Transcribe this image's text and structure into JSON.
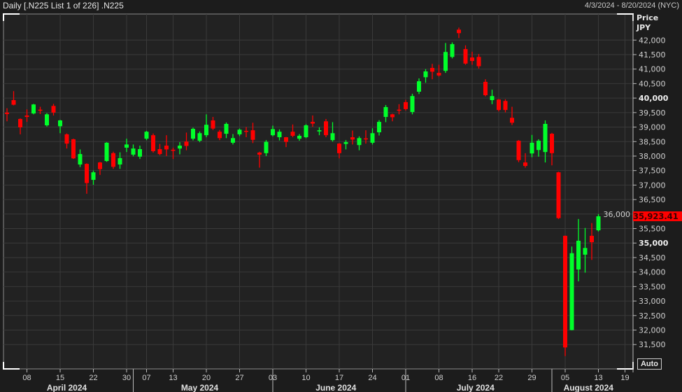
{
  "header": {
    "title": "Daily [.N225 List 1 of 226] .N225",
    "date_range": "4/3/2024 - 8/20/2024 (NYC)"
  },
  "axis": {
    "price_label": "Price",
    "currency_label": "JPY",
    "auto_button": "Auto",
    "last_price": "35,923.41"
  },
  "colors": {
    "up": "#00ff2a",
    "down": "#ff0000",
    "background": "#1c1c1c",
    "plot": "#222222",
    "grid": "#3a3a3a",
    "last_price_bg": "#ff0000"
  },
  "chart_data": {
    "type": "candlestick",
    "title": "",
    "xlabel": "",
    "ylabel": "Price JPY",
    "ylim": [
      30660,
      42900
    ],
    "grid": true,
    "yticks": [
      31500,
      32000,
      32500,
      33000,
      33500,
      34000,
      34500,
      35000,
      35500,
      36000,
      36500,
      37000,
      37500,
      38000,
      38500,
      39000,
      39500,
      40000,
      40500,
      41000,
      41500,
      42000
    ],
    "ytick_labels": [
      "31,500",
      "32,000",
      "32,500",
      "33,000",
      "33,500",
      "34,000",
      "34,500",
      "35,000",
      "35,500",
      "36,000",
      "36,500",
      "37,000",
      "37,500",
      "38,000",
      "38,500",
      "39,000",
      "39,500",
      "40,000",
      "40,500",
      "41,000",
      "41,500",
      "42,000"
    ],
    "bold_yticks": [
      35000,
      40000
    ],
    "xticks": [
      {
        "date": "2024-04-08",
        "label": "08"
      },
      {
        "date": "2024-04-15",
        "label": "15"
      },
      {
        "date": "2024-04-22",
        "label": "22"
      },
      {
        "date": "2024-04-30",
        "label": "30"
      },
      {
        "date": "2024-05-07",
        "label": "07"
      },
      {
        "date": "2024-05-13",
        "label": "13"
      },
      {
        "date": "2024-05-20",
        "label": "20"
      },
      {
        "date": "2024-05-27",
        "label": "27"
      },
      {
        "date": "2024-06-03",
        "label": "03"
      },
      {
        "date": "2024-06-10",
        "label": "10"
      },
      {
        "date": "2024-06-17",
        "label": "17"
      },
      {
        "date": "2024-06-24",
        "label": "24"
      },
      {
        "date": "2024-07-01",
        "label": "01"
      },
      {
        "date": "2024-07-08",
        "label": "08"
      },
      {
        "date": "2024-07-16",
        "label": "16"
      },
      {
        "date": "2024-07-22",
        "label": "22"
      },
      {
        "date": "2024-07-29",
        "label": "29"
      },
      {
        "date": "2024-08-05",
        "label": "05"
      },
      {
        "date": "2024-08-13",
        "label": "13"
      },
      {
        "date": "2024-08-19",
        "label": "19"
      }
    ],
    "months": [
      {
        "label": "April 2024",
        "start": "2024-04-03",
        "end": "2024-04-30"
      },
      {
        "label": "May 2024",
        "start": "2024-05-01",
        "end": "2024-05-31"
      },
      {
        "label": "June 2024",
        "start": "2024-06-03",
        "end": "2024-06-28"
      },
      {
        "label": "July 2024",
        "start": "2024-07-01",
        "end": "2024-07-31"
      },
      {
        "label": "August 2024",
        "start": "2024-08-01",
        "end": "2024-08-19"
      }
    ],
    "columns": [
      "date",
      "open",
      "high",
      "low",
      "close"
    ],
    "candles": [
      [
        "2024-04-03",
        39500,
        39650,
        39200,
        39450
      ],
      [
        "2024-04-04",
        39930,
        40240,
        39750,
        39770
      ],
      [
        "2024-04-05",
        39280,
        39300,
        38750,
        38990
      ],
      [
        "2024-04-08",
        39400,
        39610,
        39180,
        39350
      ],
      [
        "2024-04-09",
        39470,
        39800,
        39440,
        39780
      ],
      [
        "2024-04-10",
        39600,
        39700,
        39450,
        39580
      ],
      [
        "2024-04-11",
        39060,
        39480,
        39020,
        39440
      ],
      [
        "2024-04-12",
        39730,
        39800,
        39400,
        39500
      ],
      [
        "2024-04-15",
        39030,
        39250,
        38790,
        39230
      ],
      [
        "2024-04-16",
        38750,
        38780,
        38260,
        38430
      ],
      [
        "2024-04-17",
        38580,
        38600,
        37900,
        37920
      ],
      [
        "2024-04-18",
        37710,
        38230,
        37620,
        38070
      ],
      [
        "2024-04-19",
        37730,
        37750,
        36700,
        37070
      ],
      [
        "2024-04-22",
        37180,
        37500,
        37010,
        37440
      ],
      [
        "2024-04-23",
        37780,
        37800,
        37350,
        37550
      ],
      [
        "2024-04-24",
        37830,
        38480,
        37800,
        38460
      ],
      [
        "2024-04-25",
        38100,
        38150,
        37560,
        37630
      ],
      [
        "2024-04-26",
        37710,
        38130,
        37560,
        37930
      ],
      [
        "2024-04-30",
        38290,
        38600,
        38140,
        38400
      ],
      [
        "2024-05-01",
        38050,
        38400,
        37990,
        38260
      ],
      [
        "2024-05-02",
        37980,
        38360,
        37900,
        38240
      ],
      [
        "2024-05-07",
        38600,
        38870,
        38550,
        38840
      ],
      [
        "2024-05-08",
        38720,
        38780,
        38120,
        38170
      ],
      [
        "2024-05-09",
        38240,
        38420,
        38030,
        38070
      ],
      [
        "2024-05-10",
        38360,
        38720,
        38000,
        38230
      ],
      [
        "2024-05-13",
        38220,
        38290,
        37900,
        38180
      ],
      [
        "2024-05-14",
        38260,
        38480,
        38060,
        38360
      ],
      [
        "2024-05-15",
        38500,
        38810,
        38200,
        38350
      ],
      [
        "2024-05-16",
        38600,
        38980,
        38540,
        38940
      ],
      [
        "2024-05-17",
        38530,
        38850,
        38480,
        38790
      ],
      [
        "2024-05-20",
        38720,
        39440,
        38650,
        39080
      ],
      [
        "2024-05-21",
        39230,
        39350,
        38900,
        38950
      ],
      [
        "2024-05-22",
        38840,
        38900,
        38550,
        38620
      ],
      [
        "2024-05-23",
        38770,
        39160,
        38620,
        39110
      ],
      [
        "2024-05-24",
        38460,
        38760,
        38400,
        38620
      ],
      [
        "2024-05-27",
        38750,
        38950,
        38690,
        38910
      ],
      [
        "2024-05-28",
        38870,
        39000,
        38650,
        38850
      ],
      [
        "2024-05-29",
        38890,
        39150,
        38450,
        38560
      ],
      [
        "2024-05-30",
        38120,
        38150,
        37600,
        38050
      ],
      [
        "2024-05-31",
        38100,
        38550,
        38000,
        38490
      ],
      [
        "2024-06-03",
        38720,
        39050,
        38680,
        38930
      ],
      [
        "2024-06-04",
        38650,
        38920,
        38540,
        38840
      ],
      [
        "2024-06-05",
        38650,
        38660,
        38310,
        38490
      ],
      [
        "2024-06-06",
        38840,
        39090,
        38650,
        38700
      ],
      [
        "2024-06-07",
        38600,
        38760,
        38530,
        38700
      ],
      [
        "2024-06-10",
        38650,
        39100,
        38620,
        39060
      ],
      [
        "2024-06-11",
        39180,
        39400,
        39010,
        39120
      ],
      [
        "2024-06-12",
        38850,
        38990,
        38720,
        38890
      ],
      [
        "2024-06-13",
        39200,
        39280,
        38650,
        38720
      ],
      [
        "2024-06-14",
        38550,
        39170,
        38500,
        38790
      ],
      [
        "2024-06-17",
        38430,
        38450,
        37920,
        38100
      ],
      [
        "2024-06-18",
        38420,
        38550,
        38230,
        38480
      ],
      [
        "2024-06-19",
        38650,
        38880,
        38400,
        38570
      ],
      [
        "2024-06-20",
        38380,
        38680,
        38200,
        38620
      ],
      [
        "2024-06-21",
        38610,
        38890,
        38430,
        38590
      ],
      [
        "2024-06-24",
        38460,
        38960,
        38400,
        38790
      ],
      [
        "2024-06-25",
        38820,
        39240,
        38710,
        39180
      ],
      [
        "2024-06-26",
        39350,
        39760,
        39170,
        39690
      ],
      [
        "2024-06-27",
        39440,
        39460,
        39200,
        39340
      ],
      [
        "2024-06-28",
        39600,
        39790,
        39440,
        39580
      ],
      [
        "2024-07-01",
        39860,
        39940,
        39570,
        39620
      ],
      [
        "2024-07-02",
        39520,
        40150,
        39440,
        40070
      ],
      [
        "2024-07-03",
        40220,
        40680,
        40140,
        40580
      ],
      [
        "2024-07-04",
        40720,
        41000,
        40530,
        40920
      ],
      [
        "2024-07-05",
        41040,
        41180,
        40650,
        40910
      ],
      [
        "2024-07-08",
        40870,
        41150,
        40740,
        40780
      ],
      [
        "2024-07-09",
        40940,
        41900,
        40870,
        41590
      ],
      [
        "2024-07-10",
        41420,
        41920,
        41370,
        41860
      ],
      [
        "2024-07-11",
        42360,
        42430,
        42070,
        42240
      ],
      [
        "2024-07-12",
        41690,
        41820,
        41150,
        41190
      ],
      [
        "2024-07-16",
        41400,
        41600,
        41150,
        41280
      ],
      [
        "2024-07-17",
        41420,
        41520,
        41020,
        41100
      ],
      [
        "2024-07-18",
        40560,
        40650,
        40060,
        40100
      ],
      [
        "2024-07-19",
        39930,
        40290,
        39790,
        40070
      ],
      [
        "2024-07-22",
        39950,
        39970,
        39540,
        39590
      ],
      [
        "2024-07-23",
        39900,
        39960,
        39510,
        39590
      ],
      [
        "2024-07-24",
        39320,
        39700,
        39070,
        39150
      ],
      [
        "2024-07-25",
        38530,
        38550,
        37790,
        37860
      ],
      [
        "2024-07-26",
        37780,
        38100,
        37600,
        37660
      ],
      [
        "2024-07-29",
        38090,
        38730,
        37960,
        38460
      ],
      [
        "2024-07-30",
        38210,
        38580,
        37980,
        38530
      ],
      [
        "2024-07-31",
        38140,
        39230,
        37780,
        39110
      ],
      [
        "2024-08-01",
        38770,
        38800,
        37680,
        38100
      ],
      [
        "2024-08-02",
        37440,
        37460,
        35830,
        35860
      ],
      [
        "2024-08-05",
        35250,
        35260,
        31100,
        31400
      ],
      [
        "2024-08-06",
        32000,
        34880,
        31990,
        34650
      ],
      [
        "2024-08-07",
        34090,
        35830,
        33680,
        35080
      ],
      [
        "2024-08-08",
        34600,
        35520,
        33980,
        34830
      ],
      [
        "2024-08-09",
        35250,
        35690,
        34420,
        35030
      ],
      [
        "2024-08-13",
        35440,
        36000,
        35400,
        35923.41
      ]
    ]
  }
}
